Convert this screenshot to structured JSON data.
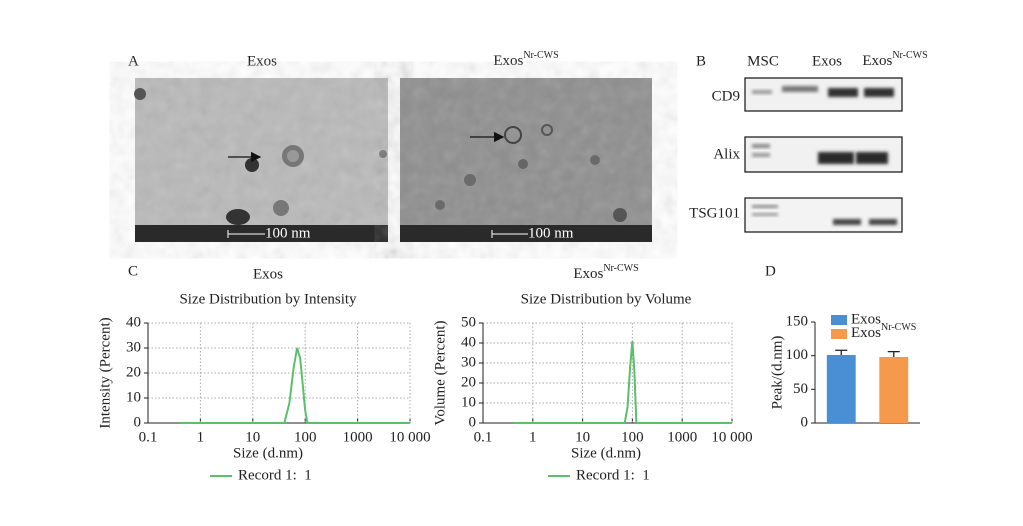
{
  "panel_a": {
    "label": "A",
    "images": [
      {
        "title": "Exos",
        "scale": "100 nm"
      },
      {
        "title": {
          "base": "Exos",
          "sup": "Nr-CWS"
        },
        "scale": "100 nm"
      }
    ]
  },
  "panel_b": {
    "label": "B",
    "lanes": [
      "MSC",
      "Exos",
      {
        "base": "Exos",
        "sup": "Nr-CWS"
      }
    ],
    "proteins": [
      "CD9",
      "Alix",
      "TSG101"
    ]
  },
  "panel_c_label": "C",
  "panel_d_label": "D",
  "chart_data": [
    {
      "type": "line",
      "title": "Exos",
      "subtitle": "Size Distribution by Intensity",
      "x_label": "Size (d.nm)",
      "y_label": "Intensity (Percent)",
      "x": [
        0.4,
        40,
        50,
        60,
        70,
        80,
        90,
        100,
        110,
        10000
      ],
      "series": [
        {
          "name": "Record 1:  1",
          "color": "#5cbf6c",
          "values": [
            0,
            0,
            8,
            22,
            30,
            26,
            15,
            5,
            0,
            0
          ]
        }
      ],
      "xlog": true,
      "xlim": [
        0.1,
        10000
      ],
      "xticks": [
        0.1,
        1,
        10,
        100,
        1000,
        {
          "value": 10000,
          "label": "10 000"
        }
      ],
      "ylim": [
        0,
        40
      ],
      "yticks": [
        0,
        10,
        20,
        30,
        40
      ],
      "grid": true
    },
    {
      "type": "line",
      "title": {
        "base": "Exos",
        "sup": "Nr-CWS"
      },
      "subtitle": "Size Distribution by Volume",
      "x_label": "Size (d.nm)",
      "y_label": "Volume (Percent)",
      "x": [
        0.4,
        70,
        80,
        90,
        100,
        110,
        120,
        10000
      ],
      "series": [
        {
          "name": "Record 1:  1",
          "color": "#5cbf6c",
          "values": [
            0,
            0,
            8,
            28,
            41,
            25,
            0,
            0
          ]
        }
      ],
      "xlog": true,
      "xlim": [
        0.1,
        10000
      ],
      "xticks": [
        0.1,
        1,
        10,
        100,
        1000,
        {
          "value": 10000,
          "label": "10 000"
        }
      ],
      "ylim": [
        0,
        50
      ],
      "yticks": [
        0,
        10,
        20,
        30,
        40,
        50
      ],
      "grid": true
    },
    {
      "type": "bar",
      "y_label": "Peak/(d.nm)",
      "series": [
        {
          "name": "Exos",
          "color": "#4a8fd4",
          "values": [
            101
          ],
          "errors": [
            7
          ]
        },
        {
          "name": {
            "base": "Exos",
            "sup": "Nr-CWS"
          },
          "color": "#f59a4a",
          "values": [
            98
          ],
          "errors": [
            8
          ]
        }
      ],
      "ylim": [
        0,
        150
      ],
      "yticks": [
        0,
        50,
        100,
        150
      ],
      "grid": false,
      "legend": "top-left"
    }
  ]
}
